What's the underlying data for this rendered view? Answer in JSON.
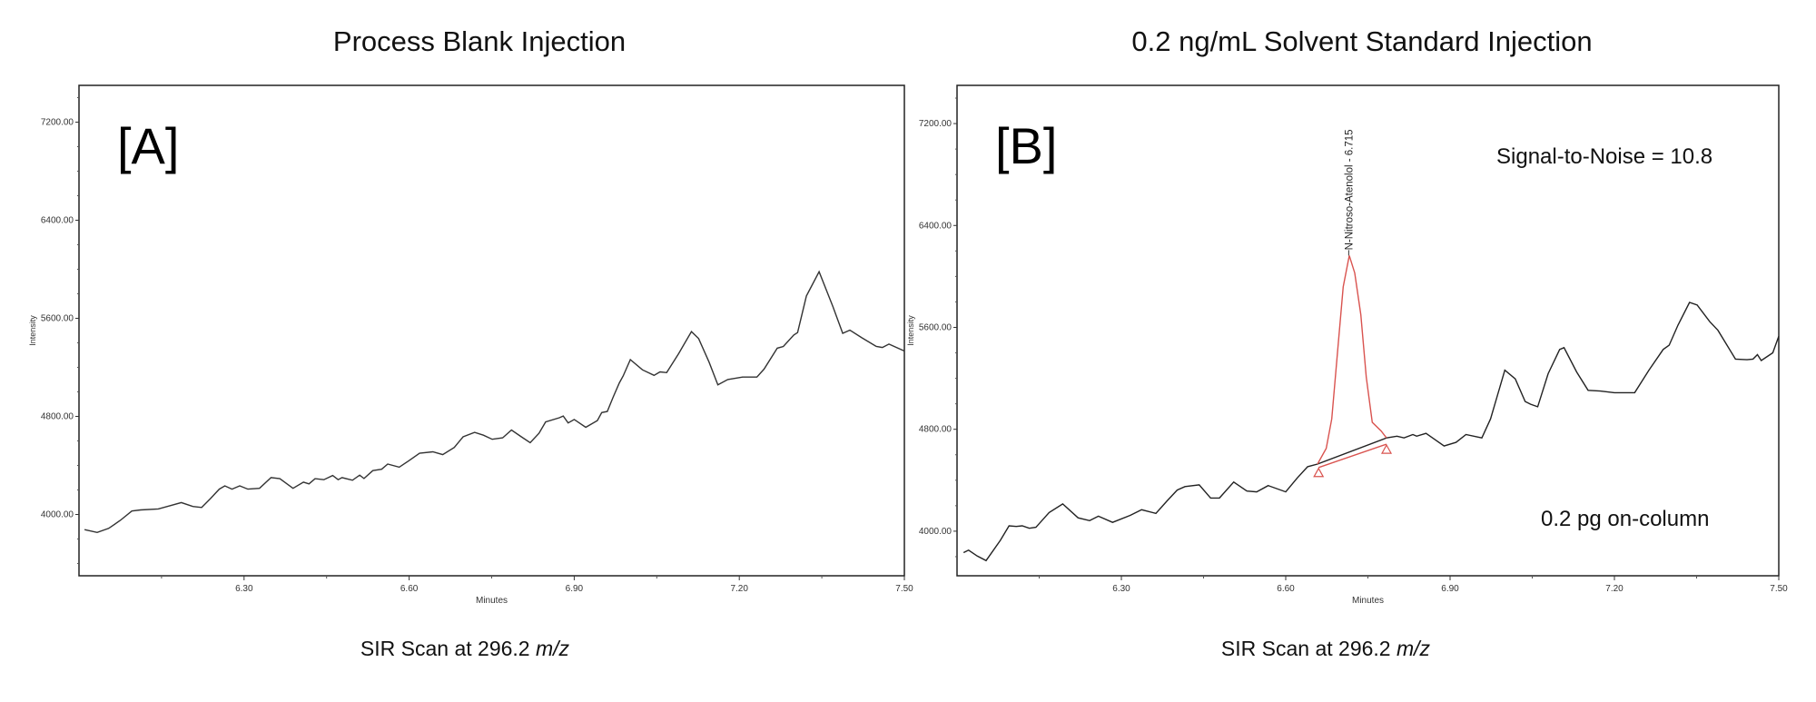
{
  "chart_data": [
    {
      "type": "line",
      "panel_label": "[A]",
      "title": "Process Blank Injection",
      "caption_prefix": "SIR Scan at 296.2 ",
      "caption_unit": "m/z",
      "xlabel": "Minutes",
      "ylabel": "Intensity",
      "xlim": [
        6.0,
        7.5
      ],
      "ylim": [
        3500,
        7500
      ],
      "xticks": [
        6.3,
        6.6,
        6.9,
        7.2,
        7.5
      ],
      "xtick_labels": [
        "6.30",
        "6.60",
        "6.90",
        "7.20",
        "7.50"
      ],
      "yticks": [
        4000,
        4800,
        5600,
        6400,
        7200
      ],
      "ytick_labels": [
        "4000.00",
        "4800.00",
        "5600.00",
        "6400.00",
        "7200.00"
      ],
      "series": [
        {
          "name": "SIR 296.2",
          "color": "#333333",
          "x": [
            6.01,
            6.033,
            6.054,
            6.075,
            6.096,
            6.112,
            6.144,
            6.165,
            6.186,
            6.207,
            6.223,
            6.239,
            6.255,
            6.265,
            6.278,
            6.292,
            6.307,
            6.328,
            6.349,
            6.365,
            6.389,
            6.408,
            6.418,
            6.429,
            6.445,
            6.461,
            6.471,
            6.478,
            6.497,
            6.51,
            6.518,
            6.534,
            6.55,
            6.561,
            6.582,
            6.598,
            6.619,
            6.643,
            6.661,
            6.682,
            6.698,
            6.719,
            6.735,
            6.751,
            6.77,
            6.786,
            6.804,
            6.82,
            6.836,
            6.848,
            6.873,
            6.88,
            6.889,
            6.9,
            6.921,
            6.942,
            6.95,
            6.96,
            6.971,
            6.982,
            6.989,
            7.002,
            7.024,
            7.045,
            7.056,
            7.068,
            7.09,
            7.113,
            7.126,
            7.145,
            7.161,
            7.179,
            7.206,
            7.232,
            7.245,
            7.269,
            7.28,
            7.299,
            7.306,
            7.322,
            7.345,
            7.37,
            7.388,
            7.401,
            7.423,
            7.449,
            7.46,
            7.472,
            7.5
          ],
          "y": [
            3876,
            3853,
            3887,
            3952,
            4028,
            4037,
            4045,
            4071,
            4097,
            4065,
            4057,
            4130,
            4207,
            4233,
            4207,
            4233,
            4207,
            4213,
            4301,
            4292,
            4213,
            4264,
            4250,
            4292,
            4284,
            4318,
            4284,
            4301,
            4279,
            4321,
            4293,
            4358,
            4369,
            4411,
            4386,
            4434,
            4499,
            4511,
            4488,
            4547,
            4633,
            4670,
            4647,
            4613,
            4625,
            4689,
            4633,
            4585,
            4662,
            4755,
            4789,
            4803,
            4747,
            4775,
            4711,
            4766,
            4831,
            4840,
            4959,
            5073,
            5130,
            5263,
            5180,
            5135,
            5163,
            5157,
            5313,
            5492,
            5435,
            5243,
            5058,
            5101,
            5121,
            5121,
            5186,
            5356,
            5370,
            5464,
            5484,
            5782,
            5980,
            5697,
            5478,
            5504,
            5441,
            5370,
            5362,
            5390,
            5333
          ]
        }
      ]
    },
    {
      "type": "line",
      "panel_label": "[B]",
      "title": "0.2 ng/mL Solvent Standard Injection",
      "caption_prefix": "SIR Scan at 296.2 ",
      "caption_unit": "m/z",
      "xlabel": "Minutes",
      "ylabel": "Intensity",
      "xlim": [
        6.0,
        7.5
      ],
      "ylim": [
        3650,
        7500
      ],
      "xticks": [
        6.3,
        6.6,
        6.9,
        7.2,
        7.5
      ],
      "xtick_labels": [
        "6.30",
        "6.60",
        "6.90",
        "7.20",
        "7.50"
      ],
      "yticks": [
        4000,
        4800,
        5600,
        6400,
        7200
      ],
      "ytick_labels": [
        "4000.00",
        "4800.00",
        "5600.00",
        "6400.00",
        "7200.00"
      ],
      "annotations": {
        "signal_to_noise": "Signal-to-Noise = 10.8",
        "amount": "0.2 pg on-column",
        "peak_label": "N-Nitroso-Atenolol - 6.715"
      },
      "peak": {
        "color": "#d9534f",
        "retention_time": 6.715,
        "x": [
          6.658,
          6.674,
          6.684,
          6.695,
          6.705,
          6.716,
          6.726,
          6.737,
          6.747,
          6.758,
          6.774,
          6.784
        ],
        "y": [
          4527,
          4650,
          4882,
          5427,
          5918,
          6164,
          6027,
          5700,
          5209,
          4855,
          4787,
          4732
        ],
        "baseline_start": [
          6.66,
          4500
        ],
        "baseline_end": [
          6.784,
          4683
        ]
      },
      "series": [
        {
          "name": "SIR 296.2",
          "color": "#222222",
          "x": [
            6.012,
            6.021,
            6.037,
            6.053,
            6.079,
            6.095,
            6.108,
            6.119,
            6.132,
            6.144,
            6.168,
            6.193,
            6.221,
            6.242,
            6.258,
            6.284,
            6.316,
            6.337,
            6.363,
            6.384,
            6.402,
            6.416,
            6.442,
            6.463,
            6.479,
            6.505,
            6.529,
            6.547,
            6.568,
            6.6,
            6.621,
            6.64,
            6.658,
            6.784,
            6.803,
            6.816,
            6.832,
            6.839,
            6.856,
            6.868,
            6.889,
            6.911,
            6.929,
            6.958,
            6.974,
            7.0,
            7.019,
            7.037,
            7.047,
            7.06,
            7.079,
            7.1,
            7.108,
            7.131,
            7.152,
            7.174,
            7.2,
            7.237,
            7.263,
            7.289,
            7.3,
            7.316,
            7.337,
            7.351,
            7.374,
            7.389,
            7.421,
            7.442,
            7.453,
            7.461,
            7.468,
            7.489,
            7.5
          ],
          "y": [
            3832,
            3851,
            3805,
            3769,
            3928,
            4042,
            4037,
            4042,
            4023,
            4031,
            4146,
            4214,
            4105,
            4083,
            4118,
            4069,
            4124,
            4168,
            4140,
            4241,
            4323,
            4350,
            4364,
            4260,
            4260,
            4386,
            4315,
            4309,
            4358,
            4309,
            4418,
            4506,
            4527,
            4732,
            4746,
            4732,
            4759,
            4746,
            4768,
            4732,
            4669,
            4697,
            4759,
            4732,
            4882,
            5264,
            5196,
            5018,
            4997,
            4977,
            5236,
            5427,
            5441,
            5250,
            5106,
            5100,
            5087,
            5087,
            5264,
            5427,
            5460,
            5618,
            5796,
            5776,
            5645,
            5577,
            5351,
            5346,
            5351,
            5386,
            5340,
            5400,
            5531
          ]
        }
      ]
    }
  ]
}
